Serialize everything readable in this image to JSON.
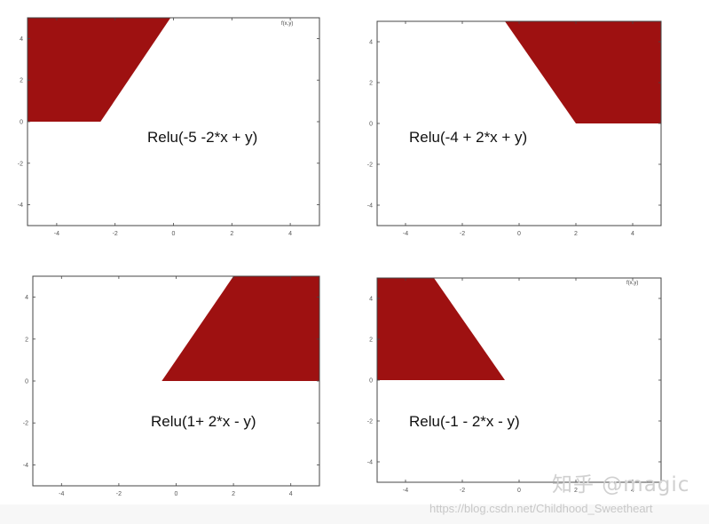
{
  "chart_data": [
    {
      "type": "area",
      "title": "Relu(-5 -2*x + y)",
      "legend_text": "f(x,y)",
      "fill_color": "#9e1111",
      "xlim": [
        -5,
        5
      ],
      "ylim": [
        -5,
        5
      ],
      "x_ticks": [
        "-4",
        "-2",
        "0",
        "2",
        "4"
      ],
      "y_ticks": [
        "4",
        "2",
        "0",
        "-2",
        "-4"
      ],
      "region_vertices": [
        [
          -5,
          5
        ],
        [
          -0.1,
          5
        ],
        [
          -2.5,
          0
        ],
        [
          -5,
          0
        ]
      ]
    },
    {
      "type": "area",
      "title": "Relu(-4 + 2*x + y)",
      "legend_text": "",
      "fill_color": "#9e1111",
      "xlim": [
        -5,
        5
      ],
      "ylim": [
        -5,
        5
      ],
      "x_ticks": [
        "-4",
        "-2",
        "0",
        "2",
        "4"
      ],
      "y_ticks": [
        "4",
        "2",
        "0",
        "-2",
        "-4"
      ],
      "region_vertices": [
        [
          -0.5,
          5
        ],
        [
          5,
          5
        ],
        [
          5,
          0
        ],
        [
          2,
          0
        ]
      ]
    },
    {
      "type": "area",
      "title": "Relu(1+ 2*x - y)",
      "legend_text": "",
      "fill_color": "#9e1111",
      "xlim": [
        -5,
        5
      ],
      "ylim": [
        -5,
        5
      ],
      "x_ticks": [
        "-4",
        "-2",
        "0",
        "2",
        "4"
      ],
      "y_ticks": [
        "4",
        "2",
        "0",
        "-2",
        "-4"
      ],
      "region_vertices": [
        [
          2,
          5
        ],
        [
          5,
          5
        ],
        [
          5,
          0
        ],
        [
          -0.5,
          0
        ]
      ]
    },
    {
      "type": "area",
      "title": "Relu(-1 - 2*x - y)",
      "legend_text": "f(x,y)",
      "fill_color": "#9e1111",
      "xlim": [
        -5,
        5
      ],
      "ylim": [
        -5,
        5
      ],
      "x_ticks": [
        "-4",
        "-2",
        "0",
        "2",
        "4"
      ],
      "y_ticks": [
        "4",
        "2",
        "0",
        "-2",
        "-4"
      ],
      "region_vertices": [
        [
          -5,
          5
        ],
        [
          -3,
          5
        ],
        [
          -0.5,
          0
        ],
        [
          -5,
          0
        ]
      ]
    }
  ],
  "watermark": {
    "zhihu": "知乎 @magic",
    "url": "https://blog.csdn.net/Childhood_Sweetheart"
  }
}
